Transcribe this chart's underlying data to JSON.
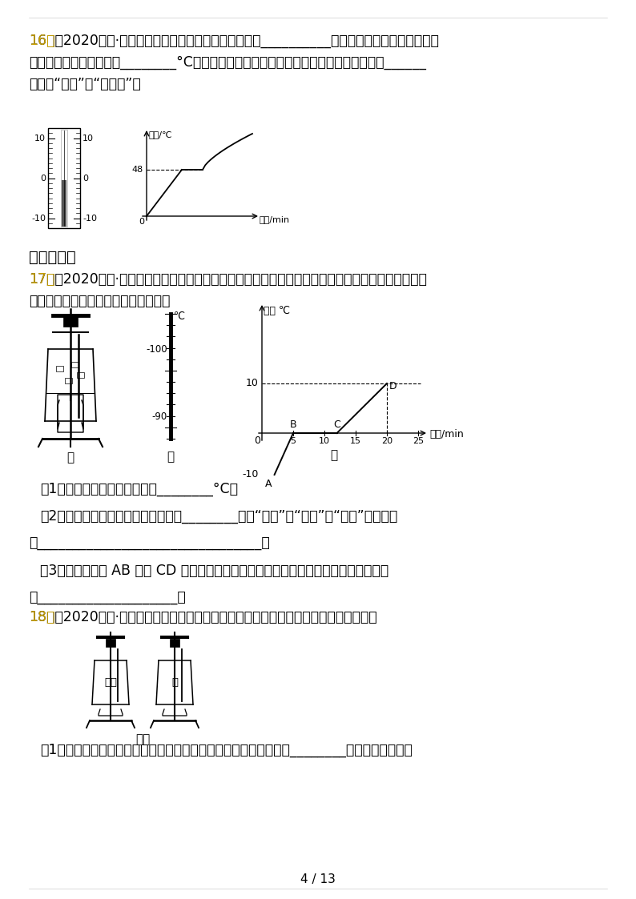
{
  "page_background": "#ffffff",
  "page_num": "4 / 13",
  "text_color": "#000000",
  "highlight_color": "#c8a000",
  "q16_line1": "16．（2020九上·庐阳月考）常用的温度计是根据液体的__________原理制成的，如图所示是温度",
  "q16_line2": "计的一段截面图，读数是________°C，如图所示是某物质的溶化图象，由此判断该物质是______",
  "q16_line3": "（选填“晶体”或“非晶体”）",
  "sec3_title": "三、实验题",
  "q17_line1": "17．（2020九上·庐阳月考）小红同学用如图甲所示的装置对冰加热，根据实验记录分别绘制了冰溶化",
  "q17_line2": "时温度随时间变化的图像如图丙所示。",
  "q17_s1": "（1）图乙中，温度计的示数为________°C；",
  "q17_s2": "（2）图丙中，此过程中该物质的内能________（填“增加”、“减少”或“不变”），原因",
  "q17_s2b": "是________________________________；",
  "q17_s3": "（3）比较图丙中 AB 段与 CD 段可以看出：吸收相同热量时，冰升温比水升温快，原因",
  "q17_s3b": "是____________________。",
  "q18_line1": "18．（2020九上·庐阳月考）某班同学利用图甲所示的实验装置探究水和某油的吸热能力",
  "q18_label": "图甲",
  "q18_s1": "（1）在图甲中除了所给的实验器材外，还需要的测量工具有天平和________，加热过程中，水"
}
